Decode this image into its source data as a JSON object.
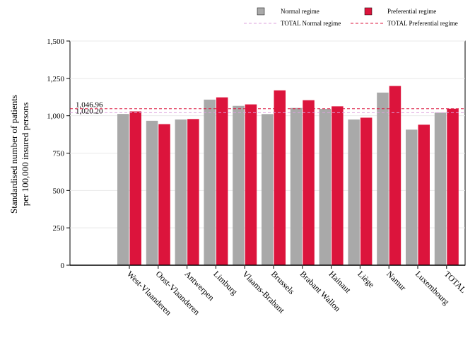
{
  "chart_data": {
    "type": "bar",
    "categories": [
      "West-Vlaanderen",
      "Oost-Vlaanderen",
      "Antwerpen",
      "Limburg",
      "Vlaams-Brabant",
      "Brussels",
      "Brabant Wallon",
      "Hainaut",
      "Liège",
      "Namur",
      "Luxembourg",
      "TOTAL"
    ],
    "series": [
      {
        "name": "Normal regime",
        "color": "#a9a9a9",
        "values": [
          1012,
          966,
          975,
          1108,
          1066,
          1011,
          1052,
          1046,
          975,
          1155,
          907,
          1021
        ]
      },
      {
        "name": "Preferential regime",
        "color": "#dc143c",
        "values": [
          1029,
          944,
          978,
          1123,
          1076,
          1170,
          1104,
          1063,
          987,
          1199,
          940,
          1047
        ]
      }
    ],
    "reference_lines": [
      {
        "name": "TOTAL Normal regime",
        "value": 1020.2,
        "label": "1,020.20",
        "color": "#dda0dd",
        "style": "dashed"
      },
      {
        "name": "TOTAL Preferential regime",
        "value": 1046.96,
        "label": "1,046.96",
        "color": "#dc143c",
        "style": "dashed"
      }
    ],
    "ylabel_lines": [
      "Standardised number of patients",
      "per 100,000 insured persons"
    ],
    "xlabel": "",
    "yticks": [
      0,
      250,
      500,
      750,
      1000,
      1250,
      1500
    ],
    "ytick_labels": [
      "0",
      "250",
      "500",
      "750",
      "1,000",
      "1,250",
      "1,500"
    ],
    "ylim": [
      0,
      1500
    ],
    "grid": true,
    "legend_position": "top"
  }
}
